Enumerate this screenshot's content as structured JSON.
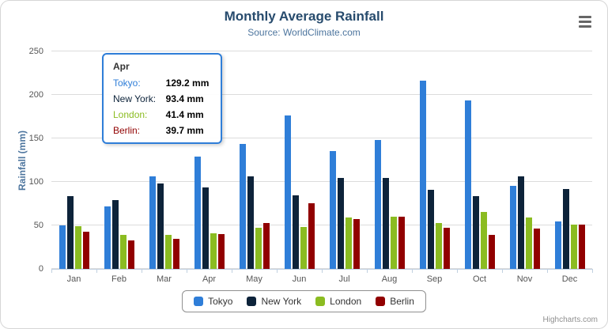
{
  "chart_data": {
    "type": "bar",
    "title": "Monthly Average Rainfall",
    "subtitle": "Source: WorldClimate.com",
    "xlabel": "",
    "ylabel": "Rainfall (mm)",
    "ylim": [
      0,
      250
    ],
    "yticks": [
      0,
      50,
      100,
      150,
      200,
      250
    ],
    "grid": true,
    "legend_position": "bottom",
    "categories": [
      "Jan",
      "Feb",
      "Mar",
      "Apr",
      "May",
      "Jun",
      "Jul",
      "Aug",
      "Sep",
      "Oct",
      "Nov",
      "Dec"
    ],
    "series": [
      {
        "name": "Tokyo",
        "color": "#2f7ed8",
        "values": [
          49.9,
          71.5,
          106.4,
          129.2,
          144.0,
          176.0,
          135.6,
          148.5,
          216.4,
          194.1,
          95.6,
          54.4
        ]
      },
      {
        "name": "New York",
        "color": "#0d233a",
        "values": [
          83.6,
          78.8,
          98.5,
          93.4,
          106.0,
          84.5,
          105.0,
          104.3,
          91.2,
          83.5,
          106.6,
          92.3
        ]
      },
      {
        "name": "London",
        "color": "#8bbc21",
        "values": [
          48.9,
          38.8,
          39.3,
          41.4,
          47.0,
          48.3,
          59.0,
          59.6,
          52.4,
          65.2,
          59.3,
          51.2
        ]
      },
      {
        "name": "Berlin",
        "color": "#910000",
        "values": [
          42.4,
          33.2,
          34.5,
          39.7,
          52.6,
          75.5,
          57.4,
          60.4,
          47.6,
          39.1,
          46.8,
          51.1
        ]
      }
    ]
  },
  "tooltip": {
    "category": "Apr",
    "rows": [
      {
        "name": "Tokyo:",
        "value": "129.2 mm",
        "color": "#2f7ed8"
      },
      {
        "name": "New York:",
        "value": "93.4 mm",
        "color": "#0d233a"
      },
      {
        "name": "London:",
        "value": "41.4 mm",
        "color": "#8bbc21"
      },
      {
        "name": "Berlin:",
        "value": "39.7 mm",
        "color": "#910000"
      }
    ]
  },
  "icons": {
    "export_menu": "hamburger-menu"
  },
  "credit": "Highcharts.com"
}
